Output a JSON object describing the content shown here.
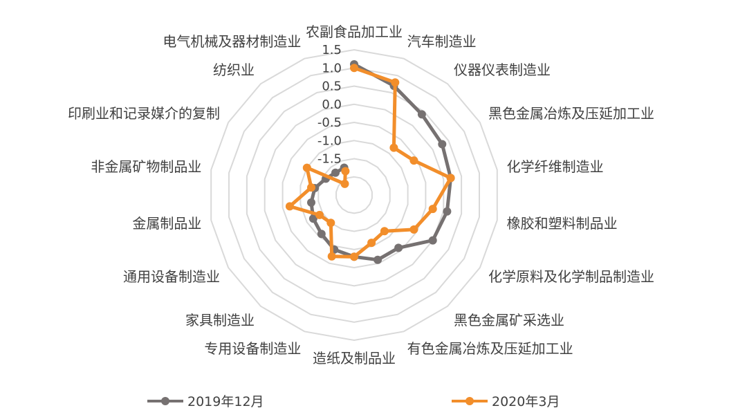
{
  "chart_data": {
    "type": "radar",
    "categories": [
      "农副食品加工业",
      "汽车制造业",
      "仪器仪表制造业",
      "黑色金属冶炼及压延加工业",
      "化学纤维制造业",
      "橡胶和塑料制品业",
      "化学原料及化学制品制造业",
      "黑色金属矿采选业",
      "有色金属冶炼及压延加工业",
      "造纸及制品业",
      "专用设备制造业",
      "家具制造业",
      "通用设备制造业",
      "金属制品业",
      "非金属矿物制品业",
      "印刷业和记录媒介的复制",
      "纺织业",
      "电气机械及器材制造业"
    ],
    "tick_labels": [
      "1.5",
      "1.0",
      "0.5",
      "0.0",
      "-0.5",
      "-1.0",
      "-1.5"
    ],
    "ylim": [
      -2.5,
      1.5
    ],
    "grid_steps": [
      -2.0,
      -1.5,
      -1.0,
      -0.5,
      0.0,
      0.5,
      1.0,
      1.5
    ],
    "series": [
      {
        "name": "2019年12月",
        "color": "#767171",
        "values": [
          1.1,
          0.7,
          0.4,
          0.3,
          0.2,
          0.1,
          0.0,
          -0.6,
          -0.6,
          -0.8,
          -0.9,
          -1.1,
          -1.2,
          -1.3,
          -1.4,
          -1.6,
          -1.7,
          -1.7
        ]
      },
      {
        "name": "2020年3月",
        "color": "#F28E2B",
        "values": [
          1.0,
          0.8,
          -0.8,
          -0.6,
          0.2,
          -0.3,
          -0.6,
          -1.2,
          -1.1,
          -0.8,
          -0.7,
          -1.5,
          -1.4,
          -0.7,
          -1.3,
          -1.0,
          -2.1,
          -1.8
        ]
      }
    ],
    "legend_position": "bottom",
    "grid": true
  }
}
